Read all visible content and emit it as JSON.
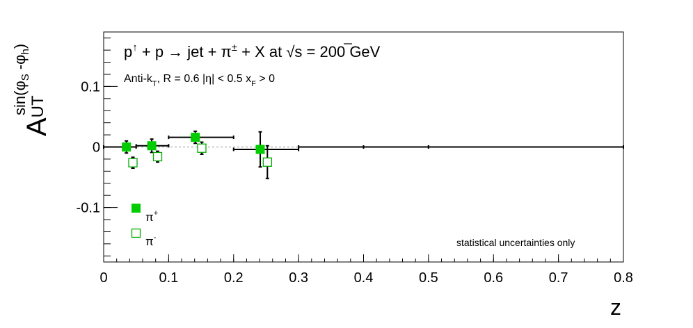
{
  "chart_data": {
    "type": "scatter",
    "title_parts": {
      "p_up": "p",
      "up_arrow": "↑",
      "plus_p": " + p ",
      "arrow": "→",
      "jet": " jet + π",
      "pm": "±",
      "rest": " + X at  ",
      "sqrt": "√",
      "s_eq": "s = 200 GeV"
    },
    "subtitle_parts": {
      "anti_k": "Anti-k",
      "k_sub": "T",
      "r": ", R = 0.6   |η| < 0.5   x",
      "xf_sub": "F",
      "xf_tail": " > 0"
    },
    "ylabel_parts": {
      "a": "A",
      "ut": "UT",
      "sin": "sin(φ",
      "s_sub": "S",
      "mid": " -φ",
      "h_sub": "h",
      "close": ")"
    },
    "xlabel": "z",
    "note": "statistical uncertainties only",
    "xlim": [
      0,
      0.8
    ],
    "ylim": [
      -0.19,
      0.19
    ],
    "x_ticks": [
      {
        "value": 0,
        "label": "0"
      },
      {
        "value": 0.1,
        "label": "0.1"
      },
      {
        "value": 0.2,
        "label": "0.2"
      },
      {
        "value": 0.3,
        "label": "0.3"
      },
      {
        "value": 0.4,
        "label": "0.4"
      },
      {
        "value": 0.5,
        "label": "0.5"
      },
      {
        "value": 0.6,
        "label": "0.6"
      },
      {
        "value": 0.7,
        "label": "0.7"
      },
      {
        "value": 0.8,
        "label": "0.8"
      }
    ],
    "y_ticks": [
      {
        "value": 0.1,
        "label": "0.1"
      },
      {
        "value": 0,
        "label": "0"
      },
      {
        "value": -0.1,
        "label": "-0.1"
      }
    ],
    "zero_line": true,
    "series": [
      {
        "name": "π⁺",
        "legend_base": "π",
        "legend_sup": "+",
        "marker": "filled-square",
        "color": "#00cc00",
        "points": [
          {
            "x": 0.035,
            "y": 0.0,
            "xlo": 0.0,
            "xhi": 0.05,
            "err": 0.01
          },
          {
            "x": 0.074,
            "y": 0.002,
            "xlo": 0.05,
            "xhi": 0.1,
            "err": 0.011
          },
          {
            "x": 0.141,
            "y": 0.016,
            "xlo": 0.1,
            "xhi": 0.2,
            "err": 0.01
          },
          {
            "x": 0.241,
            "y": -0.004,
            "xlo": 0.2,
            "xhi": 0.3,
            "err": 0.029
          },
          {
            "x": 0.35,
            "y": 0.0,
            "xlo": 0.3,
            "xhi": 0.4,
            "err": 0.0
          },
          {
            "x": 0.45,
            "y": 0.0,
            "xlo": 0.4,
            "xhi": 0.5,
            "err": 0.0
          },
          {
            "x": 0.65,
            "y": 0.0,
            "xlo": 0.5,
            "xhi": 0.8,
            "err": 0.0
          }
        ]
      },
      {
        "name": "π⁻",
        "legend_base": "π",
        "legend_sup": "-",
        "marker": "open-square",
        "color": "#00aa00",
        "points": [
          {
            "x": 0.045,
            "y": -0.026,
            "err": 0.009
          },
          {
            "x": 0.083,
            "y": -0.016,
            "err": 0.009
          },
          {
            "x": 0.151,
            "y": -0.002,
            "err": 0.01
          },
          {
            "x": 0.252,
            "y": -0.025,
            "err": 0.027
          }
        ]
      }
    ],
    "colors": {
      "note": "#dd0000",
      "zero_line": "#bbbbbb",
      "axis": "#000000"
    }
  }
}
